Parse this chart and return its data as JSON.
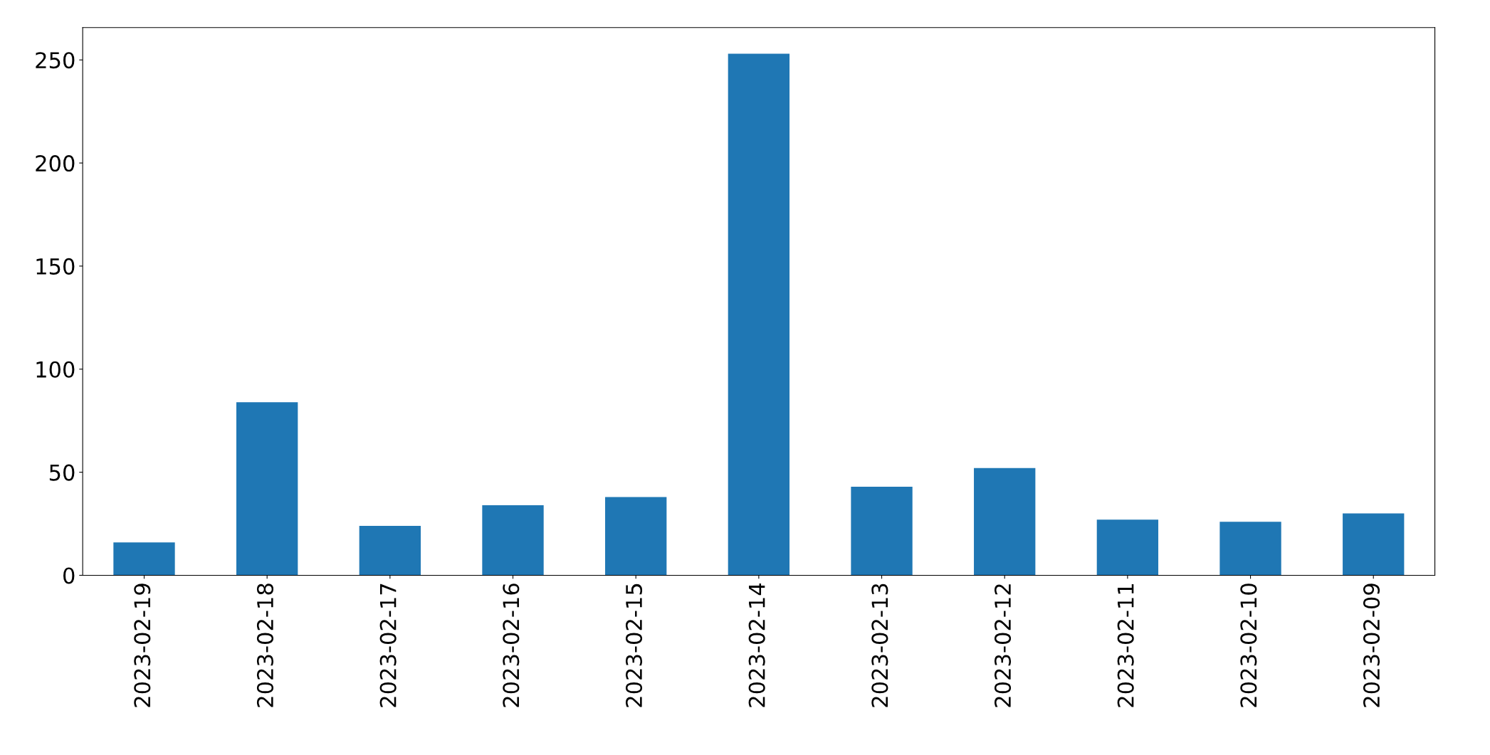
{
  "chart_data": {
    "type": "bar",
    "categories": [
      "2023-02-19",
      "2023-02-18",
      "2023-02-17",
      "2023-02-16",
      "2023-02-15",
      "2023-02-14",
      "2023-02-13",
      "2023-02-12",
      "2023-02-11",
      "2023-02-10",
      "2023-02-09"
    ],
    "values": [
      16,
      84,
      24,
      34,
      38,
      253,
      43,
      52,
      27,
      26,
      30
    ],
    "color": "#1f77b4",
    "ylim": [
      0,
      265.7
    ],
    "yticks": [
      0,
      50,
      100,
      150,
      200,
      250
    ],
    "grid": false,
    "legend": false
  }
}
